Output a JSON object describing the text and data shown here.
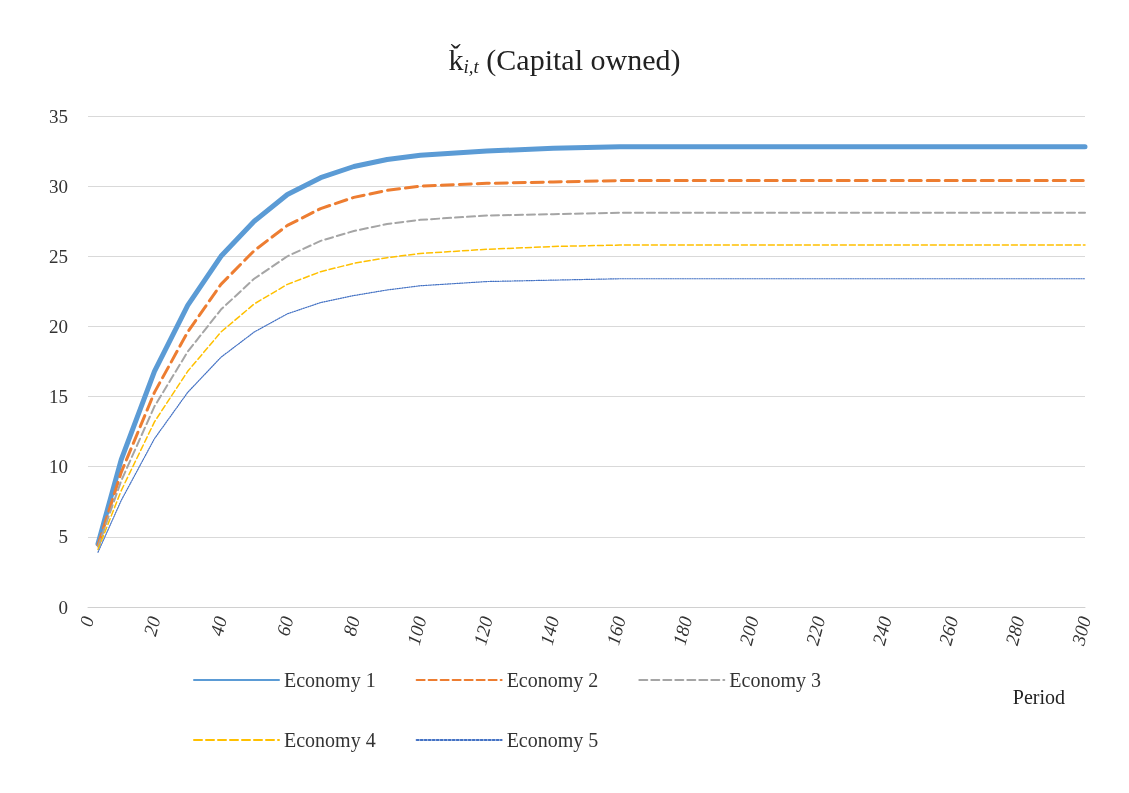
{
  "chart_data": {
    "type": "line",
    "title": "ǩ$_{i,t}$ (Capital owned)",
    "xlabel": "Period",
    "x": [
      3,
      10,
      20,
      30,
      40,
      50,
      60,
      70,
      80,
      90,
      100,
      120,
      140,
      160,
      200,
      300
    ],
    "series": [
      {
        "name": "Economy 1",
        "color": "#5b9bd5",
        "line_style": "solid",
        "values": [
          4.5,
          10.5,
          16.8,
          21.5,
          25.0,
          27.5,
          29.4,
          30.6,
          31.4,
          31.9,
          32.2,
          32.5,
          32.7,
          32.8,
          32.8,
          32.8
        ]
      },
      {
        "name": "Economy 2",
        "color": "#ed7d31",
        "line_style": "dashed",
        "values": [
          4.4,
          9.6,
          15.3,
          19.6,
          23.0,
          25.4,
          27.2,
          28.4,
          29.2,
          29.7,
          30.0,
          30.2,
          30.3,
          30.4,
          30.4,
          30.4
        ]
      },
      {
        "name": "Economy 3",
        "color": "#a5a5a5",
        "line_style": "dashed",
        "values": [
          4.3,
          9.0,
          14.3,
          18.2,
          21.2,
          23.4,
          25.0,
          26.1,
          26.8,
          27.3,
          27.6,
          27.9,
          28.0,
          28.1,
          28.1,
          28.1
        ]
      },
      {
        "name": "Economy 4",
        "color": "#ffc000",
        "line_style": "dashed",
        "values": [
          4.1,
          8.3,
          13.2,
          16.8,
          19.6,
          21.6,
          23.0,
          23.9,
          24.5,
          24.9,
          25.2,
          25.5,
          25.7,
          25.8,
          25.8,
          25.8
        ]
      },
      {
        "name": "Economy 5",
        "color": "#4472c4",
        "line_style": "dotted",
        "values": [
          3.9,
          7.6,
          12.0,
          15.3,
          17.8,
          19.6,
          20.9,
          21.7,
          22.2,
          22.6,
          22.9,
          23.2,
          23.3,
          23.4,
          23.4,
          23.4
        ]
      }
    ],
    "xlim": [
      0,
      300
    ],
    "xticks": [
      0,
      20,
      40,
      60,
      80,
      100,
      120,
      140,
      160,
      180,
      200,
      220,
      240,
      260,
      280,
      300
    ],
    "ylim": [
      0,
      35
    ],
    "yticks": [
      0,
      5,
      10,
      15,
      20,
      25,
      30,
      35
    ],
    "grid": "y",
    "legend": "bottom",
    "marker": "none"
  }
}
